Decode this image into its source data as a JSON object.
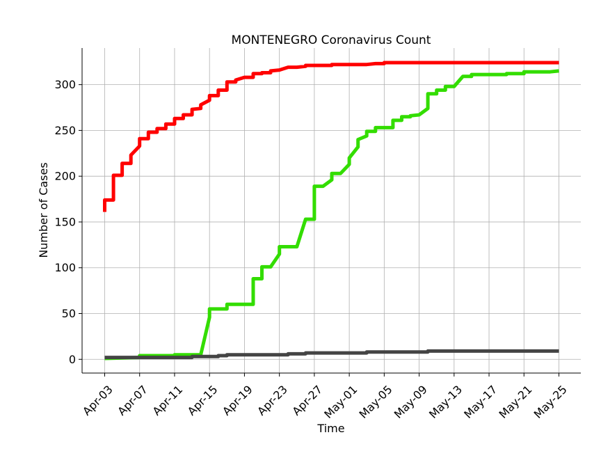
{
  "chart_data": {
    "type": "line",
    "title": "MONTENEGRO Coronavirus Count",
    "xlabel": "Time",
    "ylabel": "Number of Cases",
    "x_start": "2020-04-03",
    "x_end": "2020-05-25",
    "xlim": [
      "2020-04-03",
      "2020-05-25"
    ],
    "ylim": [
      -15,
      340
    ],
    "y_ticks": [
      0,
      50,
      100,
      150,
      200,
      250,
      300
    ],
    "x_tick_labels": [
      "Apr-03",
      "Apr-07",
      "Apr-11",
      "Apr-15",
      "Apr-19",
      "Apr-23",
      "Apr-27",
      "May-01",
      "May-05",
      "May-09",
      "May-13",
      "May-17",
      "May-21",
      "May-25"
    ],
    "x_tick_dates": [
      "2020-04-03",
      "2020-04-07",
      "2020-04-11",
      "2020-04-15",
      "2020-04-19",
      "2020-04-23",
      "2020-04-27",
      "2020-05-01",
      "2020-05-05",
      "2020-05-09",
      "2020-05-13",
      "2020-05-17",
      "2020-05-21",
      "2020-05-25"
    ],
    "grid": true,
    "series": [
      {
        "color": "#ff0000",
        "points": [
          [
            "2020-04-03",
            161
          ],
          [
            "2020-04-03",
            174
          ],
          [
            "2020-04-04",
            174
          ],
          [
            "2020-04-04",
            201
          ],
          [
            "2020-04-05",
            201
          ],
          [
            "2020-04-05",
            214
          ],
          [
            "2020-04-06",
            214
          ],
          [
            "2020-04-06",
            223
          ],
          [
            "2020-04-07",
            233
          ],
          [
            "2020-04-07",
            241
          ],
          [
            "2020-04-08",
            241
          ],
          [
            "2020-04-08",
            248
          ],
          [
            "2020-04-09",
            248
          ],
          [
            "2020-04-09",
            252
          ],
          [
            "2020-04-10",
            252
          ],
          [
            "2020-04-10",
            257
          ],
          [
            "2020-04-11",
            257
          ],
          [
            "2020-04-11",
            263
          ],
          [
            "2020-04-12",
            263
          ],
          [
            "2020-04-12",
            267
          ],
          [
            "2020-04-13",
            267
          ],
          [
            "2020-04-13",
            273
          ],
          [
            "2020-04-14",
            274
          ],
          [
            "2020-04-14",
            278
          ],
          [
            "2020-04-15",
            283
          ],
          [
            "2020-04-15",
            288
          ],
          [
            "2020-04-16",
            288
          ],
          [
            "2020-04-16",
            294
          ],
          [
            "2020-04-17",
            294
          ],
          [
            "2020-04-17",
            303
          ],
          [
            "2020-04-18",
            303
          ],
          [
            "2020-04-18",
            305
          ],
          [
            "2020-04-19",
            308
          ],
          [
            "2020-04-20",
            308
          ],
          [
            "2020-04-20",
            312
          ],
          [
            "2020-04-21",
            312
          ],
          [
            "2020-04-21",
            313
          ],
          [
            "2020-04-22",
            313
          ],
          [
            "2020-04-22",
            315
          ],
          [
            "2020-04-23",
            316
          ],
          [
            "2020-04-24",
            319
          ],
          [
            "2020-04-25",
            319
          ],
          [
            "2020-04-26",
            320
          ],
          [
            "2020-04-26",
            321
          ],
          [
            "2020-04-28",
            321
          ],
          [
            "2020-04-29",
            321
          ],
          [
            "2020-04-29",
            322
          ],
          [
            "2020-05-03",
            322
          ],
          [
            "2020-05-04",
            323
          ],
          [
            "2020-05-05",
            323
          ],
          [
            "2020-05-05",
            324
          ],
          [
            "2020-05-25",
            324
          ]
        ]
      },
      {
        "color": "#33dd00",
        "points": [
          [
            "2020-04-03",
            1
          ],
          [
            "2020-04-07",
            2
          ],
          [
            "2020-04-07",
            4
          ],
          [
            "2020-04-11",
            4
          ],
          [
            "2020-04-11",
            5
          ],
          [
            "2020-04-14",
            5
          ],
          [
            "2020-04-15",
            46
          ],
          [
            "2020-04-15",
            55
          ],
          [
            "2020-04-17",
            55
          ],
          [
            "2020-04-17",
            60
          ],
          [
            "2020-04-20",
            60
          ],
          [
            "2020-04-20",
            88
          ],
          [
            "2020-04-21",
            88
          ],
          [
            "2020-04-21",
            101
          ],
          [
            "2020-04-22",
            101
          ],
          [
            "2020-04-23",
            115
          ],
          [
            "2020-04-23",
            123
          ],
          [
            "2020-04-25",
            123
          ],
          [
            "2020-04-26",
            153
          ],
          [
            "2020-04-27",
            153
          ],
          [
            "2020-04-27",
            189
          ],
          [
            "2020-04-28",
            189
          ],
          [
            "2020-04-29",
            196
          ],
          [
            "2020-04-29",
            203
          ],
          [
            "2020-04-30",
            203
          ],
          [
            "2020-05-01",
            213
          ],
          [
            "2020-05-01",
            220
          ],
          [
            "2020-05-02",
            232
          ],
          [
            "2020-05-02",
            240
          ],
          [
            "2020-05-03",
            244
          ],
          [
            "2020-05-03",
            249
          ],
          [
            "2020-05-04",
            249
          ],
          [
            "2020-05-04",
            253
          ],
          [
            "2020-05-06",
            253
          ],
          [
            "2020-05-06",
            261
          ],
          [
            "2020-05-07",
            261
          ],
          [
            "2020-05-07",
            265
          ],
          [
            "2020-05-08",
            265
          ],
          [
            "2020-05-08",
            266
          ],
          [
            "2020-05-09",
            267
          ],
          [
            "2020-05-10",
            274
          ],
          [
            "2020-05-10",
            290
          ],
          [
            "2020-05-11",
            290
          ],
          [
            "2020-05-11",
            294
          ],
          [
            "2020-05-12",
            294
          ],
          [
            "2020-05-12",
            298
          ],
          [
            "2020-05-13",
            298
          ],
          [
            "2020-05-14",
            309
          ],
          [
            "2020-05-15",
            309
          ],
          [
            "2020-05-15",
            311
          ],
          [
            "2020-05-19",
            311
          ],
          [
            "2020-05-19",
            312
          ],
          [
            "2020-05-21",
            312
          ],
          [
            "2020-05-21",
            314
          ],
          [
            "2020-05-24",
            314
          ],
          [
            "2020-05-25",
            315
          ]
        ]
      },
      {
        "color": "#444444",
        "points": [
          [
            "2020-04-03",
            2
          ],
          [
            "2020-04-13",
            2
          ],
          [
            "2020-04-13",
            3
          ],
          [
            "2020-04-16",
            3
          ],
          [
            "2020-04-16",
            4
          ],
          [
            "2020-04-17",
            4
          ],
          [
            "2020-04-17",
            5
          ],
          [
            "2020-04-24",
            5
          ],
          [
            "2020-04-24",
            6
          ],
          [
            "2020-04-25",
            6
          ],
          [
            "2020-04-26",
            6
          ],
          [
            "2020-04-26",
            7
          ],
          [
            "2020-05-03",
            7
          ],
          [
            "2020-05-03",
            8
          ],
          [
            "2020-05-10",
            8
          ],
          [
            "2020-05-10",
            9
          ],
          [
            "2020-05-25",
            9
          ]
        ]
      }
    ]
  }
}
